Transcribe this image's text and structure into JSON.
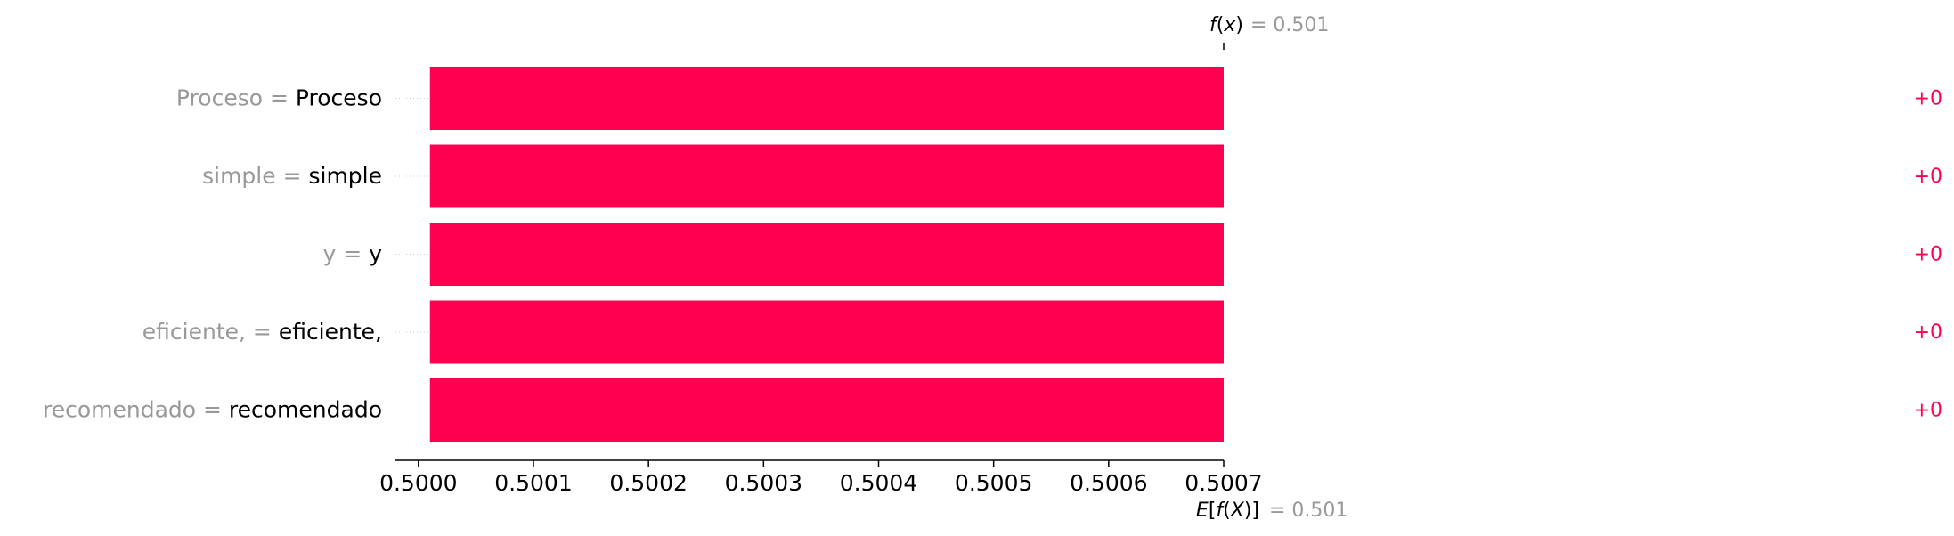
{
  "chart_data": {
    "type": "bar",
    "orientation": "horizontal",
    "features": [
      {
        "name": "Proceso ",
        "value": "Proceso",
        "contribution_label": "+0"
      },
      {
        "name": "simple ",
        "value": "simple",
        "contribution_label": "+0"
      },
      {
        "name": "y ",
        "value": "y",
        "contribution_label": "+0"
      },
      {
        "name": "eficiente, ",
        "value": "eficiente,",
        "contribution_label": "+0"
      },
      {
        "name": "recomendado",
        "value": "recomendado",
        "contribution_label": "+0"
      }
    ],
    "bar_start": 0.50001,
    "bar_end": 0.5007,
    "xlim": [
      0.49998,
      0.5007
    ],
    "xticks": [
      "0.5000",
      "0.5001",
      "0.5002",
      "0.5003",
      "0.5004",
      "0.5005",
      "0.5006",
      "0.5007"
    ],
    "fx_label": "f(x)",
    "fx_value": "= 0.501",
    "efx_label": "E[f(X)]",
    "efx_value": "= 0.501",
    "equals_sign": "=",
    "bar_color": "#ff0051",
    "label_grey": "#999999"
  }
}
